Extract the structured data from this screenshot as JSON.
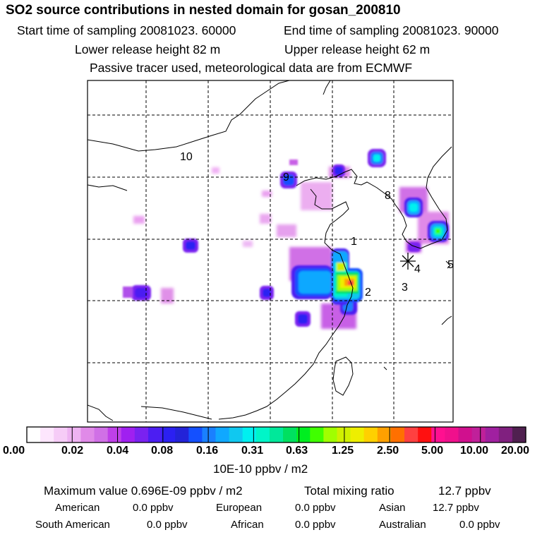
{
  "title": "SO2 source contributions in nested domain for gosan_200810",
  "header": {
    "start": "Start time of sampling 20081023. 60000",
    "end": "End time of sampling 20081023. 90000",
    "lower": "Lower release height   82 m",
    "upper": "Upper release height   62 m",
    "note": "Passive tracer used, meteorological data are from ECMWF"
  },
  "chart_data": {
    "type": "heatmap",
    "title": "SO2 source contributions in nested domain for gosan_200810",
    "units": "10E-10 ppbv / m2",
    "colorbar": {
      "tick_labels": [
        "0.00",
        "0.02",
        "0.04",
        "0.08",
        "0.16",
        "0.31",
        "0.63",
        "1.25",
        "2.50",
        "5.00",
        "10.00",
        "20.00"
      ],
      "colors": [
        "#ffffff",
        "#fde6fd",
        "#f6ccf7",
        "#eeb3f2",
        "#e08ae8",
        "#d070e6",
        "#bf40e8",
        "#a020f0",
        "#7a22f0",
        "#4c1ef2",
        "#2b20f2",
        "#2323d8",
        "#1450ff",
        "#1a80ff",
        "#10a8ff",
        "#10c8f0",
        "#00f0f0",
        "#00f5c8",
        "#00e89a",
        "#00e060",
        "#00ee20",
        "#40ff00",
        "#a0ff00",
        "#d0f000",
        "#eeee00",
        "#ffd000",
        "#ffa000",
        "#ff7000",
        "#ff4040",
        "#ff1010",
        "#ff1090",
        "#f0108c",
        "#d0108e",
        "#c0209a",
        "#a020a0",
        "#80207f",
        "#502050"
      ]
    },
    "source_region_labels": [
      "1",
      "2",
      "3",
      "4",
      "5",
      "8",
      "9",
      "10"
    ],
    "receptor": "Gosan",
    "maximum_value": "0.696E-09 ppbv / m2",
    "total_mixing_ratio": "12.7 ppbv",
    "contributions": [
      {
        "region": "American",
        "value": "0.0 ppbv"
      },
      {
        "region": "European",
        "value": "0.0 ppbv"
      },
      {
        "region": "Asian",
        "value": "12.7 ppbv"
      },
      {
        "region": "South American",
        "value": "0.0 ppbv"
      },
      {
        "region": "African",
        "value": "0.0 ppbv"
      },
      {
        "region": "Australian",
        "value": "0.0 ppbv"
      }
    ]
  },
  "footer": {
    "max_label": "Maximum value  0.696E-09 ppbv / m2",
    "total_label": "Total mixing ratio",
    "total_value": "12.7 ppbv"
  },
  "colors": {
    "grid": "#000000",
    "coast": "#000000",
    "background": "#ffffff"
  }
}
